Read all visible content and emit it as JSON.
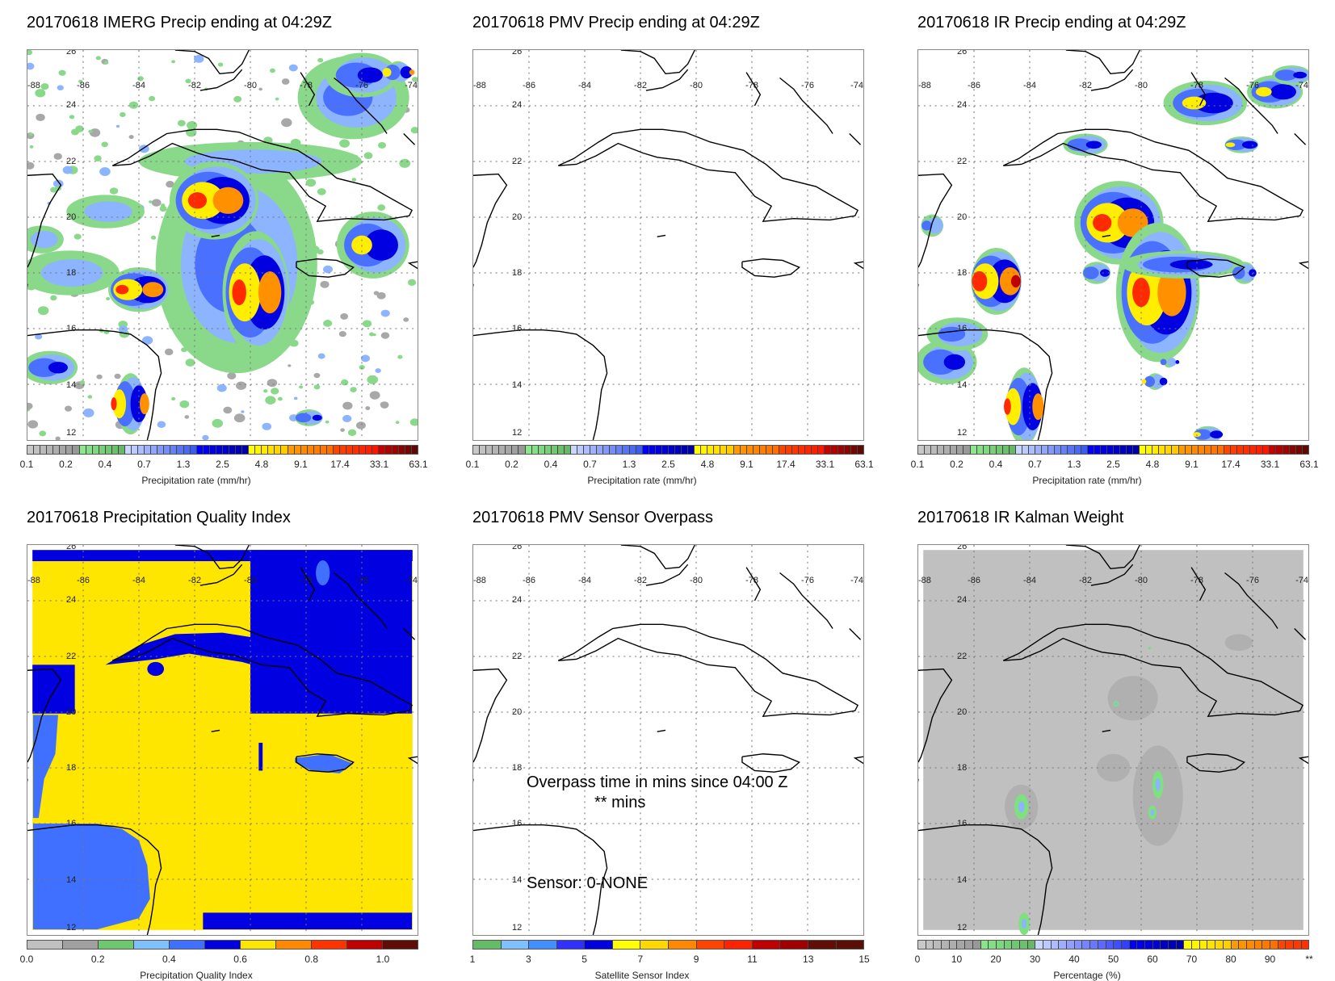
{
  "panels": [
    {
      "id": "imerg",
      "title": "20170618 IMERG Precip ending at 04:29Z",
      "colorbar_label": "Precipitation rate (mm/hr)",
      "colorbar_ticks": [
        "0.1",
        "0.2",
        "0.4",
        "0.7",
        "1.3",
        "2.5",
        "4.8",
        "9.1",
        "17.4",
        "33.1",
        "63.1"
      ],
      "colorbar": "precip"
    },
    {
      "id": "pmv",
      "title": "20170618 PMV Precip ending at 04:29Z",
      "colorbar_label": "Precipitation rate (mm/hr)",
      "colorbar_ticks": [
        "0.1",
        "0.2",
        "0.4",
        "0.7",
        "1.3",
        "2.5",
        "4.8",
        "9.1",
        "17.4",
        "33.1",
        "63.1"
      ],
      "colorbar": "precip"
    },
    {
      "id": "ir",
      "title": "20170618 IR Precip ending at 04:29Z",
      "colorbar_label": "Precipitation rate (mm/hr)",
      "colorbar_ticks": [
        "0.1",
        "0.2",
        "0.4",
        "0.7",
        "1.3",
        "2.5",
        "4.8",
        "9.1",
        "17.4",
        "33.1",
        "63.1"
      ],
      "colorbar": "precip"
    },
    {
      "id": "quality",
      "title": "20170618 Precipitation Quality Index",
      "colorbar_label": "Precipitation Quality Index",
      "colorbar_ticks": [
        "0.0",
        "0.2",
        "0.4",
        "0.6",
        "0.8",
        "1.0"
      ],
      "colorbar": "quality"
    },
    {
      "id": "sensor",
      "title": "20170618 PMV Sensor Overpass",
      "colorbar_label": "Satellite Sensor Index",
      "colorbar_ticks": [
        "1",
        "3",
        "5",
        "7",
        "9",
        "11",
        "13",
        "15"
      ],
      "colorbar": "sensor",
      "overpass_text": "Overpass time in mins since 04:00 Z",
      "overpass_value": "** mins",
      "sensor_text": "Sensor:  0-NONE"
    },
    {
      "id": "kalman",
      "title": "20170618 IR Kalman Weight",
      "colorbar_label": "Percentage (%)",
      "colorbar_ticks": [
        "0",
        "10",
        "20",
        "30",
        "40",
        "50",
        "60",
        "70",
        "80",
        "90",
        "**"
      ],
      "colorbar": "percent"
    }
  ],
  "map_labels": {
    "lon": [
      "-88",
      "-86",
      "-84",
      "-82",
      "-80",
      "-78",
      "-76",
      "-74"
    ],
    "lat": [
      "26",
      "24",
      "22",
      "20",
      "18",
      "16",
      "14",
      "12"
    ]
  },
  "colorbars": {
    "quality": [
      "#c0c0c0",
      "#a0a0a0",
      "#6ec86e",
      "#80c0ff",
      "#4070ff",
      "#0000e0",
      "#ffe600",
      "#ff8800",
      "#ff3300",
      "#c00000",
      "#5e0e06"
    ],
    "sensor": [
      "#66bb66",
      "#80c0ff",
      "#4090ff",
      "#3030ff",
      "#0000e0",
      "#ffff00",
      "#ffd800",
      "#ff8800",
      "#ff4400",
      "#ff2200",
      "#c00000",
      "#a00000",
      "#600e06",
      "#5a0e06"
    ],
    "precip_groups": [
      {
        "from": "#c8c8c8",
        "to": "#989898",
        "n": 8
      },
      {
        "from": "#8ce68c",
        "to": "#66b866",
        "n": 7
      },
      {
        "from": "#cad6ff",
        "to": "#3c5cf0",
        "n": 11
      },
      {
        "from": "#0000f8",
        "to": "#0000a8",
        "n": 8
      },
      {
        "from": "#ffff00",
        "to": "#ffcc00",
        "n": 6
      },
      {
        "from": "#ff9a00",
        "to": "#ff7000",
        "n": 7
      },
      {
        "from": "#ff4400",
        "to": "#ff1600",
        "n": 7
      },
      {
        "from": "#c40000",
        "to": "#5e0a04",
        "n": 6
      }
    ],
    "percent_groups": [
      {
        "from": "#c8c8c8",
        "to": "#989898",
        "n": 8
      },
      {
        "from": "#88e688",
        "to": "#66b866",
        "n": 7
      },
      {
        "from": "#cad6ff",
        "to": "#3040ff",
        "n": 12
      },
      {
        "from": "#0000f8",
        "to": "#0000a8",
        "n": 7
      },
      {
        "from": "#ffff00",
        "to": "#ffd000",
        "n": 6
      },
      {
        "from": "#ff9a00",
        "to": "#ff7000",
        "n": 6
      },
      {
        "from": "#ff4400",
        "to": "#ff3000",
        "n": 4
      }
    ]
  }
}
